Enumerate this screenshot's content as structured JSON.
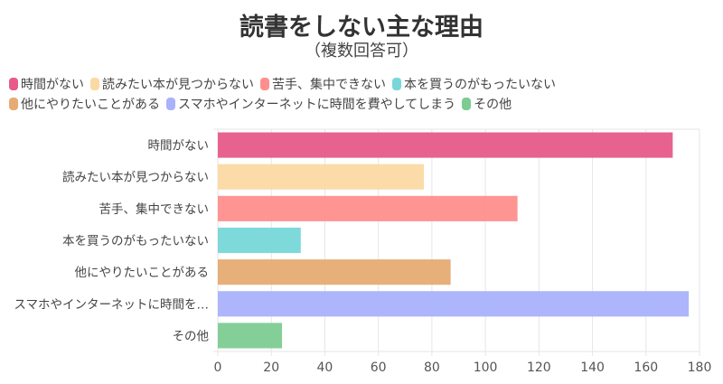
{
  "chart_data": {
    "type": "bar",
    "orientation": "horizontal",
    "title": "読書をしない主な理由",
    "subtitle": "（複数回答可）",
    "categories": [
      "時間がない",
      "読みたい本が見つからない",
      "苦手、集中できない",
      "本を買うのがもったいない",
      "他にやりたいことがある",
      "スマホやインターネットに時間を費やしてしまう",
      "その他"
    ],
    "category_tick_labels": [
      "時間がない",
      "読みたい本が見つからない",
      "苦手、集中できない",
      "本を買うのがもったいない",
      "他にやりたいことがある",
      "スマホやインターネットに時間を…",
      "その他"
    ],
    "values": [
      170,
      77,
      112,
      31,
      87,
      176,
      24
    ],
    "colors": [
      "#e75a8a",
      "#fbd9a3",
      "#ff8f8c",
      "#77d7d9",
      "#e6ab72",
      "#a9b2fa",
      "#7dcc92"
    ],
    "xlim": [
      0,
      180
    ],
    "xticks": [
      0,
      20,
      40,
      60,
      80,
      100,
      120,
      140,
      160,
      180
    ],
    "grid": true,
    "legend_position": "top"
  }
}
